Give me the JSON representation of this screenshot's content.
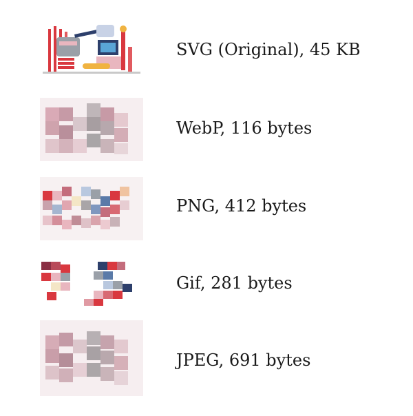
{
  "items": [
    {
      "label": "SVG (Original), 45 KB"
    },
    {
      "label": "WebP, 116 bytes"
    },
    {
      "label": "PNG, 412 bytes"
    },
    {
      "label": "Gif, 281 bytes"
    },
    {
      "label": "JPEG, 691 bytes"
    }
  ],
  "colors": {
    "red": "#d9383f",
    "navy": "#2d3f6b",
    "pink": "#e9b6bf",
    "grey": "#9aa0a8",
    "cream": "#f4e6c6",
    "blue": "#5aa5d6",
    "yellow": "#f0b341"
  }
}
